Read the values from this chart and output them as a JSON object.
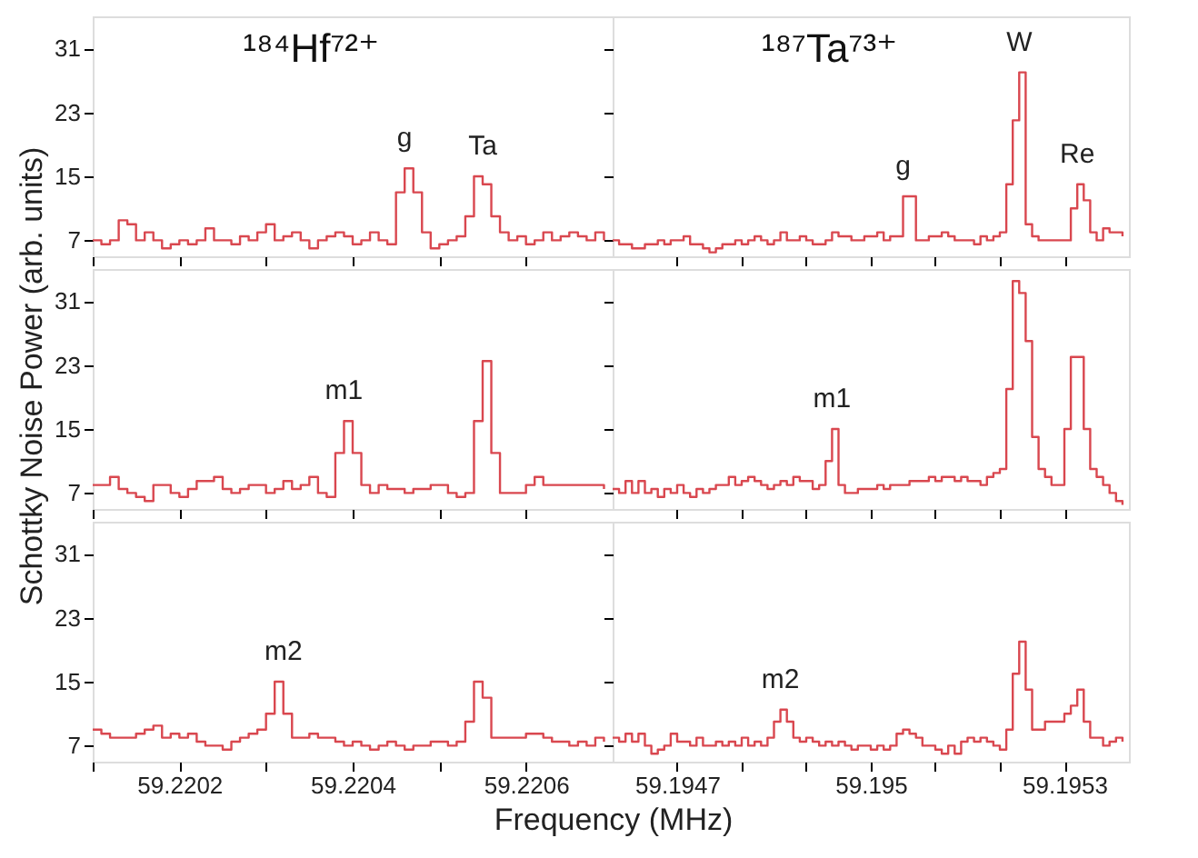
{
  "chart_data": [
    {
      "type": "step",
      "tick_labels": "y",
      "grid": false,
      "xlim": [
        59.2201,
        59.2207
      ],
      "xticks": [
        {
          "value": 59.2201,
          "label": null
        },
        59.2202,
        {
          "value": 59.2203,
          "label": null
        },
        59.2204,
        {
          "value": 59.2205,
          "label": null
        },
        59.2206
      ],
      "ylim": [
        5,
        35
      ],
      "yticks": [
        7,
        15,
        23,
        31
      ],
      "x": [
        59.2201,
        59.22011,
        59.22012,
        59.22013,
        59.22014,
        59.22015,
        59.22016,
        59.22017,
        59.22018,
        59.22019,
        59.2202,
        59.22021,
        59.22022,
        59.22023,
        59.22024,
        59.22025,
        59.22026,
        59.22027,
        59.22028,
        59.22029,
        59.2203,
        59.22031,
        59.22032,
        59.22033,
        59.22034,
        59.22035,
        59.22036,
        59.22037,
        59.22038,
        59.22039,
        59.2204,
        59.22041,
        59.22042,
        59.22043,
        59.22044,
        59.22045,
        59.22046,
        59.22047,
        59.22048,
        59.22049,
        59.2205,
        59.22051,
        59.22052,
        59.22053,
        59.22054,
        59.22055,
        59.22056,
        59.22057,
        59.22058,
        59.22059,
        59.2206,
        59.22061,
        59.22062,
        59.22063,
        59.22064,
        59.22065,
        59.22066,
        59.22067,
        59.22068,
        59.22069
      ],
      "series": [
        {
          "color": "#d9474f",
          "values": [
            7,
            6.5,
            7,
            9.5,
            9,
            7,
            8,
            7,
            6,
            6.5,
            7,
            6.5,
            7,
            8.5,
            7,
            7,
            6.5,
            7.5,
            7,
            8,
            9,
            7,
            7.5,
            8,
            7,
            6,
            7,
            7.5,
            8,
            7.5,
            6.5,
            7,
            8,
            7,
            6.5,
            13,
            16,
            13,
            8,
            6,
            6.5,
            7,
            7.5,
            10,
            15,
            14,
            10,
            8,
            7,
            7.5,
            6.5,
            7,
            8,
            7,
            7.5,
            8,
            7.5,
            7,
            8,
            7
          ]
        }
      ],
      "annotations": [
        "¹⁸⁴Hf⁷²⁺",
        {
          "text": "g",
          "x": 59.22046,
          "y": 16
        },
        {
          "text": "Ta",
          "x": 59.22055,
          "y": 15
        }
      ]
    },
    {
      "type": "step",
      "tick_labels": false,
      "grid": false,
      "xlim": [
        59.1946,
        59.1954
      ],
      "xticks": [
        59.1947,
        {
          "value": 59.1948,
          "label": null
        },
        {
          "value": 59.1949,
          "label": null
        },
        59.195,
        {
          "value": 59.1951,
          "label": null
        },
        {
          "value": 59.1952,
          "label": null
        },
        59.1953
      ],
      "ylim": [
        5,
        35
      ],
      "yticks": [
        7,
        15,
        23,
        31
      ],
      "x": [
        59.1946,
        59.19461,
        59.19462,
        59.19463,
        59.19464,
        59.19465,
        59.19466,
        59.19467,
        59.19468,
        59.19469,
        59.1947,
        59.19471,
        59.19472,
        59.19473,
        59.19474,
        59.19475,
        59.19476,
        59.19477,
        59.19478,
        59.19479,
        59.1948,
        59.19481,
        59.19482,
        59.19483,
        59.19484,
        59.19485,
        59.19486,
        59.19487,
        59.19488,
        59.19489,
        59.1949,
        59.19491,
        59.19492,
        59.19493,
        59.19494,
        59.19495,
        59.19496,
        59.19497,
        59.19498,
        59.19499,
        59.195,
        59.19501,
        59.19502,
        59.19503,
        59.19504,
        59.19505,
        59.19506,
        59.19507,
        59.19508,
        59.19509,
        59.1951,
        59.19511,
        59.19512,
        59.19513,
        59.19514,
        59.19515,
        59.19516,
        59.19517,
        59.19518,
        59.19519,
        59.1952,
        59.19521,
        59.19522,
        59.19523,
        59.19524,
        59.19525,
        59.19526,
        59.19527,
        59.19528,
        59.19529,
        59.1953,
        59.19531,
        59.19532,
        59.19533,
        59.19534,
        59.19535,
        59.19536,
        59.19537,
        59.19538,
        59.19539
      ],
      "series": [
        {
          "color": "#d9474f",
          "values": [
            7,
            6.5,
            6.5,
            6,
            6,
            6.5,
            6.5,
            7,
            6.5,
            7,
            7,
            7.5,
            6.5,
            6.5,
            6,
            5.5,
            6,
            6.5,
            6.5,
            7,
            6.5,
            7,
            7.5,
            7,
            6.5,
            7,
            8,
            7,
            7,
            7.5,
            7,
            6.5,
            6.5,
            7,
            8,
            7.5,
            7.5,
            7,
            7,
            7.5,
            7.5,
            8,
            7,
            7.5,
            7.5,
            12.5,
            12.5,
            7,
            7,
            7.5,
            7.5,
            8,
            7.5,
            7,
            7,
            7,
            6.5,
            7.5,
            7,
            7.5,
            8,
            14,
            22,
            28,
            9,
            7.5,
            7,
            7,
            7,
            7,
            7,
            11,
            14,
            12,
            8,
            7,
            8.5,
            8,
            8,
            7.5
          ]
        }
      ],
      "annotations": [
        "¹⁸⁷Ta⁷³⁺",
        {
          "text": "g",
          "x": 59.19505,
          "y": 12.5
        },
        {
          "text": "W",
          "x": 59.19523,
          "y": 28
        },
        {
          "text": "Re",
          "x": 59.19532,
          "y": 14
        }
      ]
    },
    {
      "type": "step",
      "tick_labels": "y",
      "grid": false,
      "ylabel": "Schottky Noise Power (arb. units)",
      "xlim": [
        59.2201,
        59.2207
      ],
      "xticks": [
        {
          "value": 59.2201,
          "label": null
        },
        59.2202,
        {
          "value": 59.2203,
          "label": null
        },
        59.2204,
        {
          "value": 59.2205,
          "label": null
        },
        59.2206
      ],
      "ylim": [
        5,
        35
      ],
      "yticks": [
        7,
        15,
        23,
        31
      ],
      "x": [
        59.2201,
        59.22011,
        59.22012,
        59.22013,
        59.22014,
        59.22015,
        59.22016,
        59.22017,
        59.22018,
        59.22019,
        59.2202,
        59.22021,
        59.22022,
        59.22023,
        59.22024,
        59.22025,
        59.22026,
        59.22027,
        59.22028,
        59.22029,
        59.2203,
        59.22031,
        59.22032,
        59.22033,
        59.22034,
        59.22035,
        59.22036,
        59.22037,
        59.22038,
        59.22039,
        59.2204,
        59.22041,
        59.22042,
        59.22043,
        59.22044,
        59.22045,
        59.22046,
        59.22047,
        59.22048,
        59.22049,
        59.2205,
        59.22051,
        59.22052,
        59.22053,
        59.22054,
        59.22055,
        59.22056,
        59.22057,
        59.22058,
        59.22059,
        59.2206,
        59.22061,
        59.22062,
        59.22063,
        59.22064,
        59.22065,
        59.22066,
        59.22067,
        59.22068,
        59.22069
      ],
      "series": [
        {
          "color": "#d9474f",
          "values": [
            8,
            8,
            9,
            7.5,
            7,
            6.5,
            6,
            8,
            8,
            7,
            6.5,
            7.5,
            8.5,
            8.5,
            9,
            7.5,
            7,
            7.5,
            8,
            8,
            7,
            7.5,
            8.5,
            7.5,
            8,
            9,
            7,
            6.5,
            12,
            16,
            12,
            8,
            7,
            8,
            7.5,
            7.5,
            7,
            7.5,
            7.5,
            8,
            8,
            7,
            6.5,
            7,
            16,
            23.5,
            12,
            7,
            7,
            7,
            8,
            9,
            8,
            8,
            8,
            8,
            8,
            8,
            8,
            7.5
          ]
        }
      ],
      "annotations": [
        {
          "text": "m1",
          "x": 59.22039,
          "y": 16
        }
      ]
    },
    {
      "type": "step",
      "tick_labels": false,
      "grid": false,
      "xlim": [
        59.1946,
        59.1954
      ],
      "xticks": [
        59.1947,
        {
          "value": 59.1948,
          "label": null
        },
        {
          "value": 59.1949,
          "label": null
        },
        59.195,
        {
          "value": 59.1951,
          "label": null
        },
        {
          "value": 59.1952,
          "label": null
        },
        59.1953
      ],
      "ylim": [
        5,
        35
      ],
      "yticks": [
        7,
        15,
        23,
        31
      ],
      "x": [
        59.1946,
        59.19461,
        59.19462,
        59.19463,
        59.19464,
        59.19465,
        59.19466,
        59.19467,
        59.19468,
        59.19469,
        59.1947,
        59.19471,
        59.19472,
        59.19473,
        59.19474,
        59.19475,
        59.19476,
        59.19477,
        59.19478,
        59.19479,
        59.1948,
        59.19481,
        59.19482,
        59.19483,
        59.19484,
        59.19485,
        59.19486,
        59.19487,
        59.19488,
        59.19489,
        59.1949,
        59.19491,
        59.19492,
        59.19493,
        59.19494,
        59.19495,
        59.19496,
        59.19497,
        59.19498,
        59.19499,
        59.195,
        59.19501,
        59.19502,
        59.19503,
        59.19504,
        59.19505,
        59.19506,
        59.19507,
        59.19508,
        59.19509,
        59.1951,
        59.19511,
        59.19512,
        59.19513,
        59.19514,
        59.19515,
        59.19516,
        59.19517,
        59.19518,
        59.19519,
        59.1952,
        59.19521,
        59.19522,
        59.19523,
        59.19524,
        59.19525,
        59.19526,
        59.19527,
        59.19528,
        59.19529,
        59.1953,
        59.19531,
        59.19532,
        59.19533,
        59.19534,
        59.19535,
        59.19536,
        59.19537,
        59.19538,
        59.19539
      ],
      "series": [
        {
          "color": "#d9474f",
          "values": [
            7.5,
            7,
            8.5,
            7,
            8.5,
            7,
            7.5,
            6.5,
            7.5,
            7,
            8,
            7,
            6.5,
            7.5,
            7,
            7.5,
            8,
            8,
            9,
            8,
            8.5,
            9,
            8.5,
            8,
            7.5,
            8,
            8.5,
            8,
            9,
            8.5,
            8.5,
            7.5,
            8,
            11,
            15,
            8,
            7,
            7,
            7.5,
            7.5,
            7.5,
            8,
            7.5,
            8,
            8,
            8,
            8.5,
            8.5,
            8.5,
            9,
            8.5,
            9,
            9,
            8.5,
            9,
            8.5,
            8.5,
            8,
            9,
            9.5,
            10,
            20,
            33.5,
            32,
            26,
            14,
            10,
            9,
            8,
            8,
            15,
            24,
            24,
            15,
            10,
            9,
            8,
            7,
            6,
            5.5
          ]
        }
      ],
      "annotations": [
        {
          "text": "m1",
          "x": 59.19494,
          "y": 15
        }
      ]
    },
    {
      "type": "step",
      "grid": false,
      "xlabel": "Frequency (MHz)",
      "xlim": [
        59.2201,
        59.2207
      ],
      "xticks": [
        {
          "value": 59.2201,
          "label": null
        },
        59.2202,
        {
          "value": 59.2203,
          "label": null
        },
        59.2204,
        {
          "value": 59.2205,
          "label": null
        },
        59.2206
      ],
      "ylim": [
        5,
        35
      ],
      "yticks": [
        7,
        15,
        23,
        31
      ],
      "x": [
        59.2201,
        59.22011,
        59.22012,
        59.22013,
        59.22014,
        59.22015,
        59.22016,
        59.22017,
        59.22018,
        59.22019,
        59.2202,
        59.22021,
        59.22022,
        59.22023,
        59.22024,
        59.22025,
        59.22026,
        59.22027,
        59.22028,
        59.22029,
        59.2203,
        59.22031,
        59.22032,
        59.22033,
        59.22034,
        59.22035,
        59.22036,
        59.22037,
        59.22038,
        59.22039,
        59.2204,
        59.22041,
        59.22042,
        59.22043,
        59.22044,
        59.22045,
        59.22046,
        59.22047,
        59.22048,
        59.22049,
        59.2205,
        59.22051,
        59.22052,
        59.22053,
        59.22054,
        59.22055,
        59.22056,
        59.22057,
        59.22058,
        59.22059,
        59.2206,
        59.22061,
        59.22062,
        59.22063,
        59.22064,
        59.22065,
        59.22066,
        59.22067,
        59.22068,
        59.22069
      ],
      "series": [
        {
          "color": "#d9474f",
          "values": [
            9,
            8.5,
            8,
            8,
            8,
            8.5,
            9,
            9.5,
            8,
            8.5,
            8,
            8.5,
            7.5,
            7,
            7,
            6.5,
            7.5,
            8,
            8.5,
            9,
            11,
            15,
            11,
            8,
            8,
            8.5,
            8,
            8,
            7.5,
            7,
            7.5,
            7,
            6.5,
            7,
            7.5,
            7,
            6.5,
            7,
            7,
            7.5,
            7.5,
            7,
            7.5,
            10,
            15,
            13,
            8,
            8,
            8,
            8,
            8.5,
            8.5,
            8,
            7.5,
            7.5,
            7,
            7.5,
            7,
            8,
            7.5
          ]
        }
      ],
      "annotations": [
        {
          "text": "m2",
          "x": 59.22032,
          "y": 15
        }
      ]
    },
    {
      "type": "step",
      "tick_labels": "x",
      "grid": false,
      "xlim": [
        59.1946,
        59.1954
      ],
      "xticks": [
        59.1947,
        {
          "value": 59.1948,
          "label": null
        },
        {
          "value": 59.1949,
          "label": null
        },
        59.195,
        {
          "value": 59.1951,
          "label": null
        },
        {
          "value": 59.1952,
          "label": null
        },
        59.1953
      ],
      "ylim": [
        5,
        35
      ],
      "yticks": [
        7,
        15,
        23,
        31
      ],
      "x": [
        59.1946,
        59.19461,
        59.19462,
        59.19463,
        59.19464,
        59.19465,
        59.19466,
        59.19467,
        59.19468,
        59.19469,
        59.1947,
        59.19471,
        59.19472,
        59.19473,
        59.19474,
        59.19475,
        59.19476,
        59.19477,
        59.19478,
        59.19479,
        59.1948,
        59.19481,
        59.19482,
        59.19483,
        59.19484,
        59.19485,
        59.19486,
        59.19487,
        59.19488,
        59.19489,
        59.1949,
        59.19491,
        59.19492,
        59.19493,
        59.19494,
        59.19495,
        59.19496,
        59.19497,
        59.19498,
        59.19499,
        59.195,
        59.19501,
        59.19502,
        59.19503,
        59.19504,
        59.19505,
        59.19506,
        59.19507,
        59.19508,
        59.19509,
        59.1951,
        59.19511,
        59.19512,
        59.19513,
        59.19514,
        59.19515,
        59.19516,
        59.19517,
        59.19518,
        59.19519,
        59.1952,
        59.19521,
        59.19522,
        59.19523,
        59.19524,
        59.19525,
        59.19526,
        59.19527,
        59.19528,
        59.19529,
        59.1953,
        59.19531,
        59.19532,
        59.19533,
        59.19534,
        59.19535,
        59.19536,
        59.19537,
        59.19538,
        59.19539
      ],
      "series": [
        {
          "color": "#d9474f",
          "values": [
            8,
            7.5,
            8.5,
            7.5,
            8.5,
            7,
            6,
            6.5,
            7,
            8.5,
            7.5,
            7.5,
            7,
            8,
            7,
            7,
            7.5,
            7,
            7.5,
            7,
            8,
            7,
            7.5,
            7,
            8,
            10,
            11.5,
            10,
            8,
            7.5,
            8,
            7.5,
            7,
            7.5,
            7,
            7.5,
            7,
            6.5,
            7,
            7,
            6.5,
            7,
            6.5,
            7,
            8.5,
            9,
            8.5,
            8,
            7,
            7,
            6.5,
            6,
            7,
            6,
            7.5,
            8,
            7.5,
            8,
            7.5,
            7,
            6.5,
            9,
            16,
            20,
            14,
            9,
            9,
            10,
            10,
            10,
            11,
            12,
            14,
            10,
            8,
            8,
            7,
            7.5,
            8,
            7.5
          ]
        }
      ],
      "annotations": [
        {
          "text": "m2",
          "x": 59.19486,
          "y": 11.5
        }
      ]
    }
  ]
}
